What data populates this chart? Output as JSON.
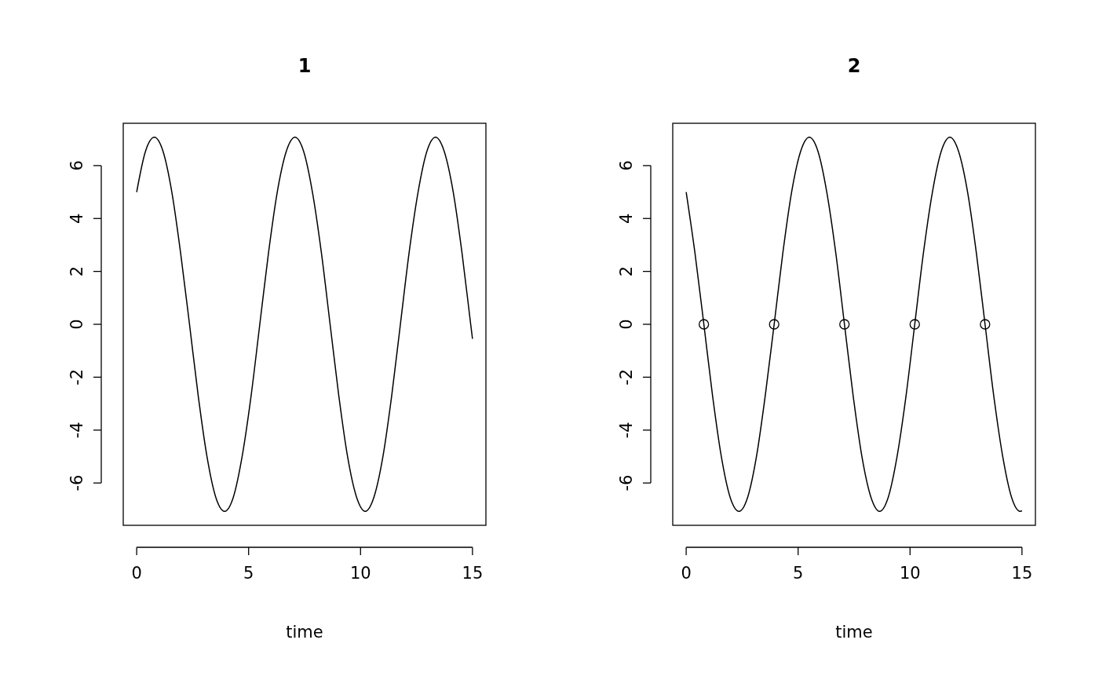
{
  "chart_data": [
    {
      "type": "line",
      "title": "1",
      "xlabel": "time",
      "x": [
        0,
        0.39,
        0.79,
        1.18,
        1.57,
        1.96,
        2.36,
        2.75,
        3.14,
        3.53,
        3.93,
        4.32,
        4.71,
        5.11,
        5.5,
        5.89,
        6.28,
        6.68,
        7.07,
        7.46,
        7.85,
        8.25,
        8.64,
        9.03,
        9.42,
        9.82,
        10.21,
        10.6,
        11,
        11.39,
        11.78,
        12.17,
        12.57,
        12.96,
        13.35,
        13.74,
        14.14,
        14.53,
        14.92,
        15
      ],
      "series": [
        {
          "color": "#000000",
          "values": [
            5,
            6.53,
            7.07,
            6.53,
            5,
            2.71,
            0,
            -2.71,
            -5,
            -6.53,
            -7.07,
            -6.53,
            -5,
            -2.71,
            0,
            2.71,
            5,
            6.53,
            7.07,
            6.53,
            5,
            2.71,
            0,
            -2.71,
            -5,
            -6.53,
            -7.07,
            -6.53,
            -5,
            -2.71,
            0,
            2.71,
            5,
            6.53,
            7.07,
            6.53,
            5,
            2.71,
            0,
            -0.55
          ]
        }
      ],
      "xlim": [
        -0.6,
        15.6
      ],
      "ylim": [
        -7.6,
        7.6
      ],
      "xticks": [
        0,
        5,
        10,
        15
      ],
      "yticks": [
        -6,
        -4,
        -2,
        0,
        2,
        4,
        6
      ]
    },
    {
      "type": "line",
      "title": "2",
      "xlabel": "time",
      "x": [
        0,
        0.39,
        0.79,
        1.18,
        1.57,
        1.96,
        2.36,
        2.75,
        3.14,
        3.53,
        3.93,
        4.32,
        4.71,
        5.11,
        5.5,
        5.89,
        6.28,
        6.68,
        7.07,
        7.46,
        7.85,
        8.25,
        8.64,
        9.03,
        9.42,
        9.82,
        10.21,
        10.6,
        11,
        11.39,
        11.78,
        12.17,
        12.57,
        12.96,
        13.35,
        13.74,
        14.14,
        14.53,
        14.92,
        15
      ],
      "series": [
        {
          "color": "#000000",
          "values": [
            5,
            2.71,
            0,
            -2.71,
            -5,
            -6.53,
            -7.07,
            -6.53,
            -5,
            -2.71,
            0,
            2.71,
            5,
            6.53,
            7.07,
            6.53,
            5,
            2.71,
            0,
            -2.71,
            -5,
            -6.53,
            -7.07,
            -6.53,
            -5,
            -2.71,
            0,
            2.71,
            5,
            6.53,
            7.07,
            6.53,
            5,
            2.71,
            0,
            -2.71,
            -5,
            -6.53,
            -7.07,
            -7.05
          ]
        },
        {
          "type": "scatter",
          "color": "#000000",
          "marker": "circle",
          "x": [
            0.79,
            3.93,
            7.07,
            10.21,
            13.35
          ],
          "values": [
            0,
            0,
            0,
            0,
            0
          ]
        }
      ],
      "xlim": [
        -0.6,
        15.6
      ],
      "ylim": [
        -7.6,
        7.6
      ],
      "xticks": [
        0,
        5,
        10,
        15
      ],
      "yticks": [
        -6,
        -4,
        -2,
        0,
        2,
        4,
        6
      ]
    }
  ]
}
